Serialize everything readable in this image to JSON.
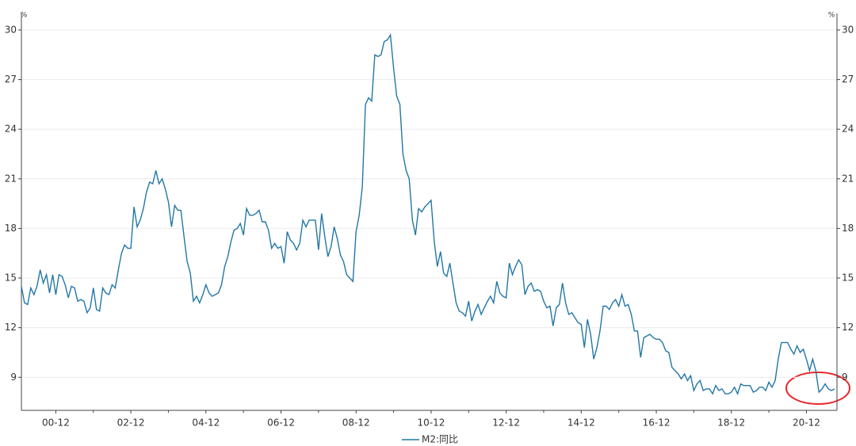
{
  "chart_data": {
    "type": "line",
    "unit_label": "%",
    "categories": [
      null,
      null,
      null,
      null,
      null,
      null,
      null,
      null,
      null,
      null,
      null,
      "00-12",
      null,
      null,
      null,
      null,
      null,
      null,
      null,
      null,
      null,
      null,
      null,
      null,
      null,
      null,
      null,
      null,
      null,
      null,
      null,
      null,
      null,
      null,
      null,
      "02-12",
      null,
      null,
      null,
      null,
      null,
      null,
      null,
      null,
      null,
      null,
      null,
      null,
      null,
      null,
      null,
      null,
      null,
      null,
      null,
      null,
      null,
      null,
      null,
      "04-12",
      null,
      null,
      null,
      null,
      null,
      null,
      null,
      null,
      null,
      null,
      null,
      null,
      null,
      null,
      null,
      null,
      null,
      null,
      null,
      null,
      null,
      null,
      null,
      "06-12",
      null,
      null,
      null,
      null,
      null,
      null,
      null,
      null,
      null,
      null,
      null,
      null,
      null,
      null,
      null,
      null,
      null,
      null,
      null,
      null,
      null,
      null,
      null,
      "08-12",
      null,
      null,
      null,
      null,
      null,
      null,
      null,
      null,
      null,
      null,
      null,
      null,
      null,
      null,
      null,
      null,
      null,
      null,
      null,
      null,
      null,
      null,
      null,
      "10-12",
      null,
      null,
      null,
      null,
      null,
      null,
      null,
      null,
      null,
      null,
      null,
      null,
      null,
      null,
      null,
      null,
      null,
      null,
      null,
      null,
      null,
      null,
      null,
      "12-12",
      null,
      null,
      null,
      null,
      null,
      null,
      null,
      null,
      null,
      null,
      null,
      null,
      null,
      null,
      null,
      null,
      null,
      null,
      null,
      null,
      null,
      null,
      null,
      "14-12",
      null,
      null,
      null,
      null,
      null,
      null,
      null,
      null,
      null,
      null,
      null,
      null,
      null,
      null,
      null,
      null,
      null,
      null,
      null,
      null,
      null,
      null,
      null,
      "16-12",
      null,
      null,
      null,
      null,
      null,
      null,
      null,
      null,
      null,
      null,
      null,
      null,
      null,
      null,
      null,
      null,
      null,
      null,
      null,
      null,
      null,
      null,
      null,
      "18-12",
      null,
      null,
      null,
      null,
      null,
      null,
      null,
      null,
      null,
      null,
      null,
      null,
      null,
      null,
      null,
      null,
      null,
      null,
      null,
      null,
      null,
      null,
      null,
      "20-12",
      null,
      null,
      null,
      null,
      null,
      null,
      null,
      null,
      null
    ],
    "series": [
      {
        "name": "M2:同比",
        "color": "#2277a6",
        "values": [
          14.5,
          13.5,
          13.4,
          14.4,
          14.0,
          14.5,
          15.5,
          14.7,
          15.2,
          14.1,
          15.2,
          14.0,
          15.2,
          15.1,
          14.6,
          13.8,
          14.5,
          14.4,
          13.6,
          13.7,
          13.6,
          12.9,
          13.2,
          14.4,
          13.1,
          13.0,
          14.4,
          14.1,
          14.0,
          14.6,
          14.4,
          15.5,
          16.5,
          17.0,
          16.8,
          16.8,
          19.3,
          18.1,
          18.5,
          19.2,
          20.2,
          20.8,
          20.7,
          21.5,
          20.7,
          21.0,
          20.4,
          19.6,
          18.1,
          19.4,
          19.1,
          19.1,
          17.5,
          16.0,
          15.3,
          13.6,
          13.9,
          13.5,
          14.0,
          14.6,
          14.1,
          13.9,
          14.0,
          14.1,
          14.6,
          15.7,
          16.3,
          17.2,
          17.9,
          18.0,
          18.3,
          17.6,
          19.2,
          18.8,
          18.8,
          18.9,
          19.1,
          18.4,
          18.4,
          17.9,
          16.8,
          17.1,
          16.8,
          16.9,
          15.9,
          17.8,
          17.3,
          17.1,
          16.7,
          17.1,
          18.5,
          18.1,
          18.5,
          18.5,
          18.5,
          16.7,
          18.9,
          17.5,
          16.3,
          16.9,
          18.1,
          17.4,
          16.4,
          16.0,
          15.2,
          15.0,
          14.8,
          17.8,
          18.8,
          20.5,
          25.5,
          25.9,
          25.7,
          28.5,
          28.4,
          28.5,
          29.3,
          29.4,
          29.7,
          27.7,
          26.0,
          25.5,
          22.5,
          21.5,
          21.0,
          18.5,
          17.6,
          19.2,
          19.0,
          19.3,
          19.5,
          19.7,
          17.2,
          15.7,
          16.6,
          15.3,
          15.1,
          15.9,
          14.7,
          13.5,
          13.0,
          12.9,
          12.7,
          13.6,
          12.4,
          13.0,
          13.4,
          12.8,
          13.2,
          13.6,
          13.9,
          13.5,
          14.8,
          14.1,
          13.9,
          13.8,
          15.9,
          15.2,
          15.7,
          16.1,
          15.8,
          14.0,
          14.5,
          14.7,
          14.2,
          14.3,
          14.2,
          13.6,
          13.2,
          13.3,
          12.1,
          13.2,
          13.4,
          14.7,
          13.5,
          12.8,
          12.9,
          12.6,
          12.3,
          12.2,
          10.8,
          12.5,
          11.6,
          10.1,
          10.8,
          11.8,
          13.3,
          13.3,
          13.1,
          13.5,
          13.7,
          13.3,
          14.0,
          13.3,
          13.4,
          12.8,
          11.8,
          11.8,
          10.2,
          11.4,
          11.5,
          11.6,
          11.4,
          11.3,
          11.3,
          11.1,
          10.6,
          10.5,
          9.6,
          9.4,
          9.2,
          8.9,
          9.2,
          8.8,
          9.1,
          8.2,
          8.6,
          8.8,
          8.2,
          8.3,
          8.3,
          8.0,
          8.5,
          8.2,
          8.3,
          8.0,
          8.0,
          8.1,
          8.4,
          8.0,
          8.6,
          8.5,
          8.5,
          8.5,
          8.1,
          8.2,
          8.4,
          8.4,
          8.2,
          8.7,
          8.4,
          8.8,
          10.1,
          11.1,
          11.1,
          11.1,
          10.7,
          10.4,
          10.9,
          10.5,
          10.7,
          10.1,
          9.4,
          10.1,
          9.4,
          8.1,
          8.3,
          8.6,
          8.3,
          8.2,
          8.3
        ]
      }
    ],
    "ylim": [
      7,
      31
    ],
    "yticks": [
      9,
      12,
      15,
      18,
      21,
      24,
      27,
      30
    ],
    "y2lim": [
      7,
      31
    ],
    "y2ticks": [
      9,
      12,
      15,
      18,
      21,
      24,
      27,
      30
    ],
    "grid": true,
    "legend": "bottom"
  }
}
